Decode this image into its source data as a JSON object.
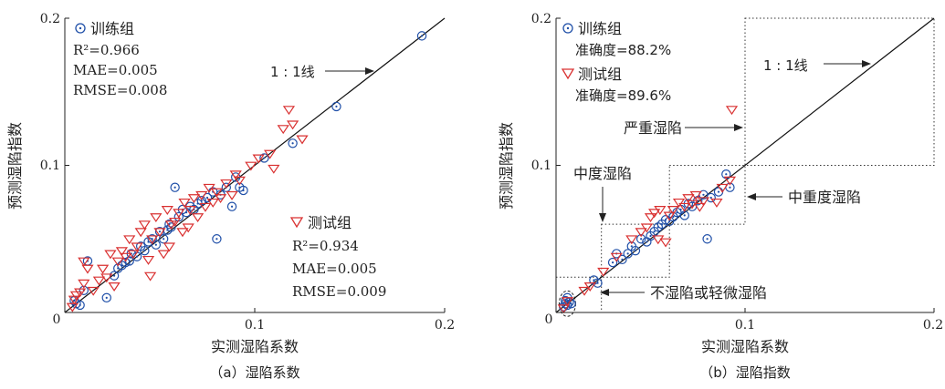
{
  "chart_data": [
    {
      "type": "scatter",
      "caption": "（a）湿陷系数",
      "xlabel": "实测湿陷系数",
      "ylabel": "预测湿陷指数",
      "xlim": [
        0,
        0.2
      ],
      "ylim": [
        0,
        0.2
      ],
      "x_ticks": [
        "0",
        "0.1",
        "0.2"
      ],
      "y_ticks": [
        "0.1",
        "0.2"
      ],
      "reference_line": {
        "label": "1 : 1线",
        "from": [
          0,
          0
        ],
        "to": [
          0.2,
          0.2
        ]
      },
      "series": [
        {
          "name": "训练组",
          "marker": "circle-dot",
          "color": "#1f4fa8",
          "stats": [
            "R²=0.966",
            "MAE=0.005",
            "RMSE=0.008"
          ],
          "points": [
            [
              0.005,
              0.008
            ],
            [
              0.006,
              0.006
            ],
            [
              0.008,
              0.005
            ],
            [
              0.01,
              0.015
            ],
            [
              0.012,
              0.035
            ],
            [
              0.022,
              0.01
            ],
            [
              0.026,
              0.025
            ],
            [
              0.028,
              0.03
            ],
            [
              0.03,
              0.032
            ],
            [
              0.032,
              0.034
            ],
            [
              0.034,
              0.035
            ],
            [
              0.035,
              0.04
            ],
            [
              0.038,
              0.038
            ],
            [
              0.04,
              0.045
            ],
            [
              0.042,
              0.042
            ],
            [
              0.044,
              0.048
            ],
            [
              0.046,
              0.05
            ],
            [
              0.048,
              0.046
            ],
            [
              0.05,
              0.055
            ],
            [
              0.052,
              0.05
            ],
            [
              0.054,
              0.056
            ],
            [
              0.055,
              0.06
            ],
            [
              0.056,
              0.058
            ],
            [
              0.058,
              0.085
            ],
            [
              0.06,
              0.065
            ],
            [
              0.062,
              0.07
            ],
            [
              0.064,
              0.068
            ],
            [
              0.066,
              0.072
            ],
            [
              0.068,
              0.07
            ],
            [
              0.07,
              0.074
            ],
            [
              0.072,
              0.076
            ],
            [
              0.075,
              0.078
            ],
            [
              0.078,
              0.082
            ],
            [
              0.08,
              0.05
            ],
            [
              0.082,
              0.08
            ],
            [
              0.085,
              0.085
            ],
            [
              0.088,
              0.072
            ],
            [
              0.09,
              0.092
            ],
            [
              0.092,
              0.085
            ],
            [
              0.094,
              0.083
            ],
            [
              0.105,
              0.105
            ],
            [
              0.12,
              0.115
            ],
            [
              0.143,
              0.14
            ],
            [
              0.188,
              0.188
            ]
          ]
        },
        {
          "name": "测试组",
          "marker": "triangle-down",
          "color": "#d93030",
          "stats": [
            "R²=0.934",
            "MAE=0.005",
            "RMSE=0.009"
          ],
          "points": [
            [
              0.004,
              0.004
            ],
            [
              0.005,
              0.009
            ],
            [
              0.006,
              0.012
            ],
            [
              0.008,
              0.014
            ],
            [
              0.01,
              0.02
            ],
            [
              0.01,
              0.035
            ],
            [
              0.012,
              0.03
            ],
            [
              0.015,
              0.015
            ],
            [
              0.018,
              0.022
            ],
            [
              0.02,
              0.03
            ],
            [
              0.022,
              0.024
            ],
            [
              0.024,
              0.04
            ],
            [
              0.026,
              0.018
            ],
            [
              0.028,
              0.035
            ],
            [
              0.03,
              0.042
            ],
            [
              0.032,
              0.038
            ],
            [
              0.034,
              0.05
            ],
            [
              0.036,
              0.04
            ],
            [
              0.038,
              0.045
            ],
            [
              0.04,
              0.055
            ],
            [
              0.042,
              0.06
            ],
            [
              0.044,
              0.036
            ],
            [
              0.045,
              0.025
            ],
            [
              0.046,
              0.05
            ],
            [
              0.048,
              0.065
            ],
            [
              0.05,
              0.055
            ],
            [
              0.052,
              0.04
            ],
            [
              0.054,
              0.07
            ],
            [
              0.055,
              0.045
            ],
            [
              0.056,
              0.06
            ],
            [
              0.058,
              0.062
            ],
            [
              0.06,
              0.068
            ],
            [
              0.062,
              0.055
            ],
            [
              0.063,
              0.075
            ],
            [
              0.065,
              0.058
            ],
            [
              0.066,
              0.07
            ],
            [
              0.068,
              0.078
            ],
            [
              0.07,
              0.065
            ],
            [
              0.072,
              0.08
            ],
            [
              0.074,
              0.072
            ],
            [
              0.076,
              0.085
            ],
            [
              0.078,
              0.075
            ],
            [
              0.08,
              0.082
            ],
            [
              0.082,
              0.078
            ],
            [
              0.085,
              0.088
            ],
            [
              0.088,
              0.08
            ],
            [
              0.09,
              0.094
            ],
            [
              0.092,
              0.09
            ],
            [
              0.098,
              0.1
            ],
            [
              0.102,
              0.105
            ],
            [
              0.108,
              0.108
            ],
            [
              0.11,
              0.098
            ],
            [
              0.115,
              0.125
            ],
            [
              0.118,
              0.138
            ],
            [
              0.12,
              0.128
            ],
            [
              0.125,
              0.118
            ]
          ]
        }
      ]
    },
    {
      "type": "scatter",
      "caption": "（b）湿陷指数",
      "xlabel": "实测湿陷系数",
      "ylabel": "预测湿陷指数",
      "xlim": [
        0,
        0.2
      ],
      "ylim": [
        0,
        0.2
      ],
      "x_ticks": [
        "0",
        "0.1",
        "0.2"
      ],
      "y_ticks": [
        "0.1",
        "0.2"
      ],
      "reference_line": {
        "label": "1 : 1线",
        "from": [
          0,
          0
        ],
        "to": [
          0.2,
          0.2
        ]
      },
      "series": [
        {
          "name": "训练组",
          "marker": "circle-dot",
          "color": "#1f4fa8",
          "stats": [
            "准确度=88.2%"
          ],
          "points": [
            [
              0.004,
              0.004
            ],
            [
              0.005,
              0.006
            ],
            [
              0.005,
              0.008
            ],
            [
              0.006,
              0.005
            ],
            [
              0.006,
              0.01
            ],
            [
              0.007,
              0.007
            ],
            [
              0.008,
              0.006
            ],
            [
              0.02,
              0.022
            ],
            [
              0.022,
              0.02
            ],
            [
              0.03,
              0.034
            ],
            [
              0.032,
              0.04
            ],
            [
              0.035,
              0.036
            ],
            [
              0.038,
              0.04
            ],
            [
              0.04,
              0.045
            ],
            [
              0.042,
              0.042
            ],
            [
              0.045,
              0.05
            ],
            [
              0.048,
              0.048
            ],
            [
              0.05,
              0.052
            ],
            [
              0.052,
              0.055
            ],
            [
              0.054,
              0.058
            ],
            [
              0.056,
              0.06
            ],
            [
              0.058,
              0.063
            ],
            [
              0.06,
              0.062
            ],
            [
              0.062,
              0.065
            ],
            [
              0.064,
              0.068
            ],
            [
              0.066,
              0.07
            ],
            [
              0.068,
              0.066
            ],
            [
              0.07,
              0.074
            ],
            [
              0.072,
              0.072
            ],
            [
              0.075,
              0.076
            ],
            [
              0.078,
              0.08
            ],
            [
              0.08,
              0.05
            ],
            [
              0.082,
              0.078
            ],
            [
              0.086,
              0.082
            ],
            [
              0.09,
              0.094
            ],
            [
              0.092,
              0.085
            ]
          ]
        },
        {
          "name": "测试组",
          "marker": "triangle-down",
          "color": "#d93030",
          "stats": [
            "准确度=89.6%"
          ],
          "points": [
            [
              0.004,
              0.003
            ],
            [
              0.006,
              0.008
            ],
            [
              0.015,
              0.015
            ],
            [
              0.018,
              0.018
            ],
            [
              0.025,
              0.028
            ],
            [
              0.032,
              0.038
            ],
            [
              0.04,
              0.05
            ],
            [
              0.045,
              0.055
            ],
            [
              0.048,
              0.058
            ],
            [
              0.05,
              0.065
            ],
            [
              0.052,
              0.068
            ],
            [
              0.054,
              0.05
            ],
            [
              0.055,
              0.07
            ],
            [
              0.058,
              0.048
            ],
            [
              0.06,
              0.066
            ],
            [
              0.062,
              0.07
            ],
            [
              0.065,
              0.075
            ],
            [
              0.068,
              0.072
            ],
            [
              0.07,
              0.078
            ],
            [
              0.072,
              0.074
            ],
            [
              0.074,
              0.08
            ],
            [
              0.076,
              0.072
            ],
            [
              0.078,
              0.076
            ],
            [
              0.085,
              0.075
            ],
            [
              0.088,
              0.085
            ],
            [
              0.092,
              0.09
            ],
            [
              0.093,
              0.138
            ]
          ]
        }
      ],
      "zones": [
        {
          "label": "不湿陷或轻微湿陷",
          "x": [
            0,
            0.024
          ],
          "y": [
            0,
            0.024
          ]
        },
        {
          "label": "中度湿陷",
          "x": [
            0.024,
            0.06
          ],
          "y": [
            0.024,
            0.06
          ]
        },
        {
          "label": "中重度湿陷",
          "x": [
            0.06,
            0.1
          ],
          "y": [
            0.06,
            0.1
          ]
        },
        {
          "label": "严重湿陷",
          "x": [
            0.1,
            0.2
          ],
          "y": [
            0.1,
            0.2
          ]
        }
      ]
    }
  ]
}
